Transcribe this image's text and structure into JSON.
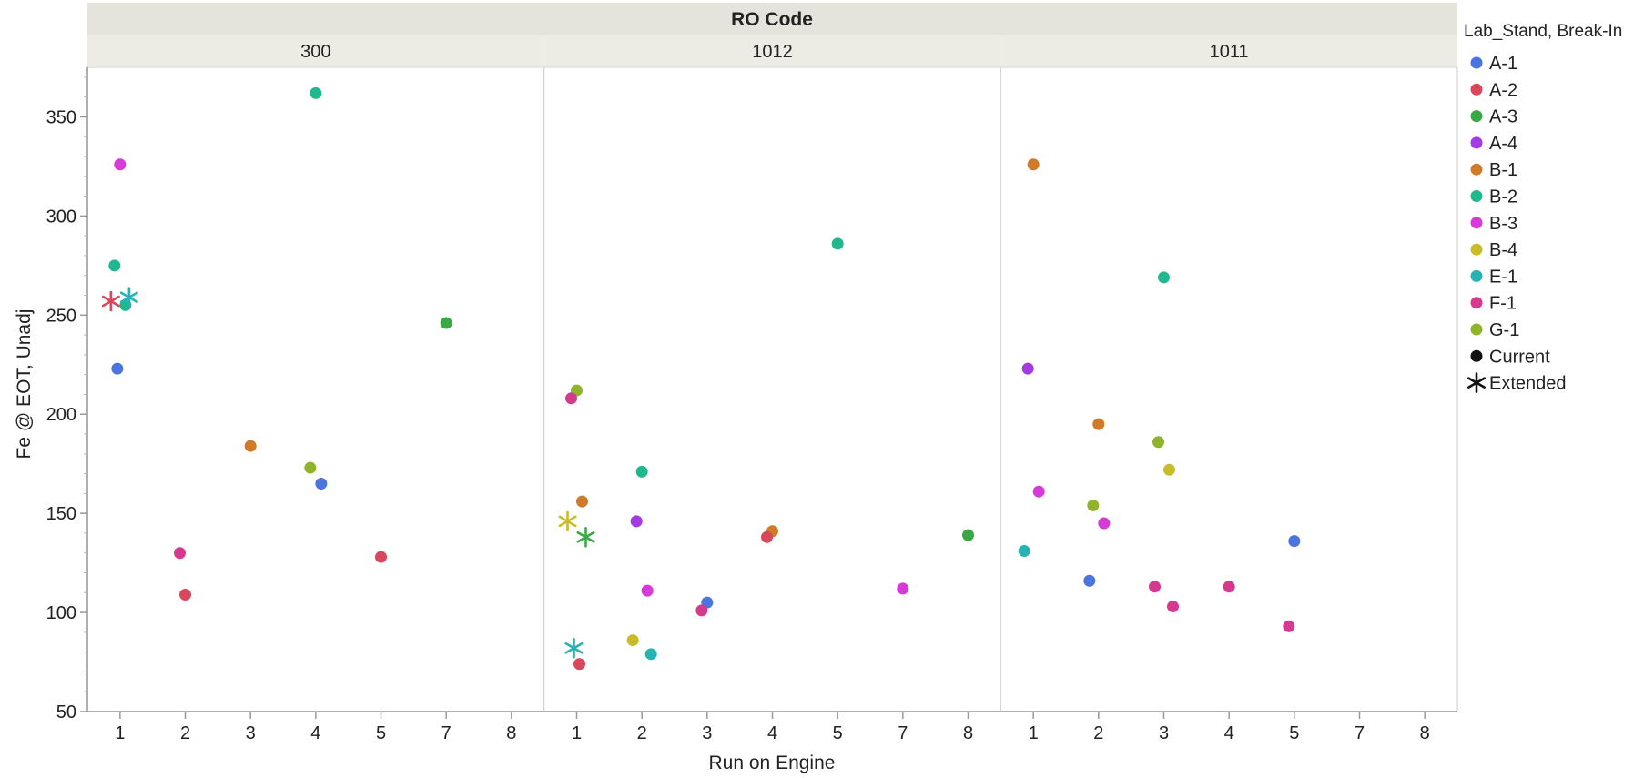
{
  "chart_data": {
    "type": "scatter",
    "title": "RO Code",
    "xlabel": "Run on Engine",
    "ylabel": "Fe @ EOT, Unadj",
    "ylim": [
      50,
      375
    ],
    "y_ticks": [
      50,
      100,
      150,
      200,
      250,
      300,
      350
    ],
    "legend": {
      "title": "Lab_Stand, Break-In",
      "placement": "right",
      "series": [
        {
          "name": "A-1",
          "color": "#4a74e0"
        },
        {
          "name": "A-2",
          "color": "#d9475a"
        },
        {
          "name": "A-3",
          "color": "#3aa845"
        },
        {
          "name": "A-4",
          "color": "#a33be0"
        },
        {
          "name": "B-1",
          "color": "#d07a2a"
        },
        {
          "name": "B-2",
          "color": "#22b88f"
        },
        {
          "name": "B-3",
          "color": "#d63ad9"
        },
        {
          "name": "B-4",
          "color": "#c9bb2a"
        },
        {
          "name": "E-1",
          "color": "#27b3b3"
        },
        {
          "name": "F-1",
          "color": "#d63a8e"
        },
        {
          "name": "G-1",
          "color": "#8fb32a"
        }
      ],
      "markers": [
        {
          "name": "Current",
          "symbol": "dot"
        },
        {
          "name": "Extended",
          "symbol": "asterisk"
        }
      ]
    },
    "panels": [
      {
        "name": "300",
        "categories": [
          "1",
          "2",
          "3",
          "4",
          "5",
          "7",
          "8"
        ],
        "points": [
          {
            "series": "B-3",
            "x": "1",
            "y": 326,
            "marker": "Current"
          },
          {
            "series": "B-2",
            "x": "1",
            "y": 275,
            "marker": "Current"
          },
          {
            "series": "B-2",
            "x": "1",
            "y": 255,
            "marker": "Current"
          },
          {
            "series": "A-2",
            "x": "1",
            "y": 257,
            "marker": "Extended"
          },
          {
            "series": "E-1",
            "x": "1",
            "y": 259,
            "marker": "Extended"
          },
          {
            "series": "A-1",
            "x": "1",
            "y": 223,
            "marker": "Current"
          },
          {
            "series": "A-2",
            "x": "2",
            "y": 109,
            "marker": "Current"
          },
          {
            "series": "F-1",
            "x": "2",
            "y": 130,
            "marker": "Current"
          },
          {
            "series": "B-1",
            "x": "3",
            "y": 184,
            "marker": "Current"
          },
          {
            "series": "B-2",
            "x": "4",
            "y": 362,
            "marker": "Current"
          },
          {
            "series": "G-1",
            "x": "4",
            "y": 173,
            "marker": "Current"
          },
          {
            "series": "A-1",
            "x": "4",
            "y": 165,
            "marker": "Current"
          },
          {
            "series": "A-2",
            "x": "5",
            "y": 128,
            "marker": "Current"
          },
          {
            "series": "A-3",
            "x": "7",
            "y": 246,
            "marker": "Current"
          }
        ]
      },
      {
        "name": "1012",
        "categories": [
          "1",
          "2",
          "3",
          "4",
          "5",
          "7",
          "8"
        ],
        "points": [
          {
            "series": "G-1",
            "x": "1",
            "y": 212,
            "marker": "Current"
          },
          {
            "series": "F-1",
            "x": "1",
            "y": 208,
            "marker": "Current"
          },
          {
            "series": "B-1",
            "x": "1",
            "y": 156,
            "marker": "Current"
          },
          {
            "series": "B-4",
            "x": "1",
            "y": 146,
            "marker": "Extended"
          },
          {
            "series": "A-3",
            "x": "1",
            "y": 138,
            "marker": "Extended"
          },
          {
            "series": "E-1",
            "x": "1",
            "y": 82,
            "marker": "Extended"
          },
          {
            "series": "A-2",
            "x": "1",
            "y": 74,
            "marker": "Current"
          },
          {
            "series": "B-2",
            "x": "2",
            "y": 171,
            "marker": "Current"
          },
          {
            "series": "A-4",
            "x": "2",
            "y": 146,
            "marker": "Current"
          },
          {
            "series": "B-3",
            "x": "2",
            "y": 111,
            "marker": "Current"
          },
          {
            "series": "B-4",
            "x": "2",
            "y": 86,
            "marker": "Current"
          },
          {
            "series": "E-1",
            "x": "2",
            "y": 79,
            "marker": "Current"
          },
          {
            "series": "A-1",
            "x": "3",
            "y": 105,
            "marker": "Current"
          },
          {
            "series": "F-1",
            "x": "3",
            "y": 101,
            "marker": "Current"
          },
          {
            "series": "B-1",
            "x": "4",
            "y": 141,
            "marker": "Current"
          },
          {
            "series": "A-2",
            "x": "4",
            "y": 138,
            "marker": "Current"
          },
          {
            "series": "B-2",
            "x": "5",
            "y": 286,
            "marker": "Current"
          },
          {
            "series": "B-3",
            "x": "7",
            "y": 112,
            "marker": "Current"
          },
          {
            "series": "A-3",
            "x": "8",
            "y": 139,
            "marker": "Current"
          }
        ]
      },
      {
        "name": "1011",
        "categories": [
          "1",
          "2",
          "3",
          "4",
          "5",
          "7",
          "8"
        ],
        "points": [
          {
            "series": "B-1",
            "x": "1",
            "y": 326,
            "marker": "Current"
          },
          {
            "series": "A-4",
            "x": "1",
            "y": 223,
            "marker": "Current"
          },
          {
            "series": "B-3",
            "x": "1",
            "y": 161,
            "marker": "Current"
          },
          {
            "series": "E-1",
            "x": "1",
            "y": 131,
            "marker": "Current"
          },
          {
            "series": "B-1",
            "x": "2",
            "y": 195,
            "marker": "Current"
          },
          {
            "series": "G-1",
            "x": "2",
            "y": 154,
            "marker": "Current"
          },
          {
            "series": "B-3",
            "x": "2",
            "y": 145,
            "marker": "Current"
          },
          {
            "series": "A-1",
            "x": "2",
            "y": 116,
            "marker": "Current"
          },
          {
            "series": "B-2",
            "x": "3",
            "y": 269,
            "marker": "Current"
          },
          {
            "series": "G-1",
            "x": "3",
            "y": 186,
            "marker": "Current"
          },
          {
            "series": "B-4",
            "x": "3",
            "y": 172,
            "marker": "Current"
          },
          {
            "series": "F-1",
            "x": "3",
            "y": 113,
            "marker": "Current"
          },
          {
            "series": "F-1",
            "x": "3",
            "y": 103,
            "marker": "Current"
          },
          {
            "series": "F-1",
            "x": "4",
            "y": 113,
            "marker": "Current"
          },
          {
            "series": "A-1",
            "x": "5",
            "y": 136,
            "marker": "Current"
          },
          {
            "series": "F-1",
            "x": "5",
            "y": 93,
            "marker": "Current"
          }
        ]
      }
    ]
  }
}
